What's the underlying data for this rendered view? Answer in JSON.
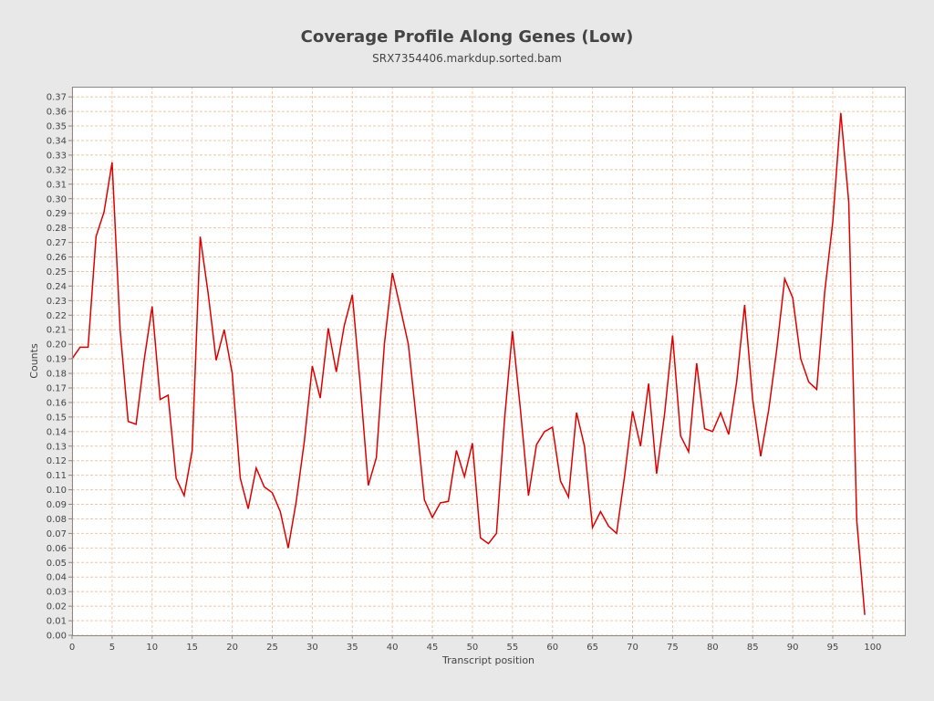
{
  "chart_data": {
    "type": "line",
    "title": "Coverage Profile Along Genes (Low)",
    "subtitle": "SRX7354406.markdup.sorted.bam",
    "xlabel": "Transcript position",
    "ylabel": "Counts",
    "xlim": [
      0,
      104
    ],
    "ylim": [
      0,
      0.377
    ],
    "x_ticks": [
      0,
      5,
      10,
      15,
      20,
      25,
      30,
      35,
      40,
      45,
      50,
      55,
      60,
      65,
      70,
      75,
      80,
      85,
      90,
      95,
      100
    ],
    "y_ticks": [
      "0.00",
      "0.01",
      "0.02",
      "0.03",
      "0.04",
      "0.05",
      "0.06",
      "0.07",
      "0.08",
      "0.09",
      "0.10",
      "0.11",
      "0.12",
      "0.13",
      "0.14",
      "0.15",
      "0.16",
      "0.17",
      "0.18",
      "0.19",
      "0.20",
      "0.21",
      "0.22",
      "0.23",
      "0.24",
      "0.25",
      "0.26",
      "0.27",
      "0.28",
      "0.29",
      "0.30",
      "0.31",
      "0.32",
      "0.33",
      "0.34",
      "0.35",
      "0.36",
      "0.37"
    ],
    "grid": true,
    "colors": {
      "line": "#dd0000",
      "grid": "#f0c8a8",
      "plot_bg": "#ffffff",
      "page_bg": "#e8e8e8"
    },
    "series": [
      {
        "x": [
          0,
          1,
          2,
          3,
          4,
          5,
          6,
          7,
          8,
          9,
          10,
          11,
          12,
          13,
          14,
          15,
          16,
          17,
          18,
          19,
          20,
          21,
          22,
          23,
          24,
          25,
          26,
          27,
          28,
          29,
          30,
          31,
          32,
          33,
          34,
          35,
          36,
          37,
          38,
          39,
          40,
          41,
          42,
          43,
          44,
          45,
          46,
          47,
          48,
          49,
          50,
          51,
          52,
          53,
          54,
          55,
          56,
          57,
          58,
          59,
          60,
          61,
          62,
          63,
          64,
          65,
          66,
          67,
          68,
          69,
          70,
          71,
          72,
          73,
          74,
          75,
          76,
          77,
          78,
          79,
          80,
          81,
          82,
          83,
          84,
          85,
          86,
          87,
          88,
          89,
          90,
          91,
          92,
          93,
          94,
          95,
          96,
          97,
          98,
          99
        ],
        "values": [
          0.19,
          0.198,
          0.198,
          0.274,
          0.291,
          0.325,
          0.21,
          0.147,
          0.145,
          0.189,
          0.226,
          0.162,
          0.165,
          0.108,
          0.096,
          0.127,
          0.274,
          0.235,
          0.189,
          0.21,
          0.18,
          0.108,
          0.087,
          0.115,
          0.102,
          0.098,
          0.085,
          0.06,
          0.092,
          0.133,
          0.185,
          0.163,
          0.211,
          0.181,
          0.213,
          0.234,
          0.172,
          0.103,
          0.122,
          0.2,
          0.249,
          0.225,
          0.2,
          0.148,
          0.093,
          0.081,
          0.091,
          0.092,
          0.127,
          0.109,
          0.132,
          0.067,
          0.063,
          0.07,
          0.148,
          0.209,
          0.155,
          0.096,
          0.131,
          0.14,
          0.143,
          0.106,
          0.095,
          0.153,
          0.13,
          0.074,
          0.085,
          0.075,
          0.07,
          0.109,
          0.154,
          0.13,
          0.173,
          0.111,
          0.152,
          0.206,
          0.137,
          0.126,
          0.187,
          0.142,
          0.14,
          0.153,
          0.138,
          0.174,
          0.227,
          0.162,
          0.123,
          0.155,
          0.196,
          0.245,
          0.232,
          0.19,
          0.174,
          0.169,
          0.236,
          0.284,
          0.359,
          0.298,
          0.079,
          0.014
        ]
      }
    ]
  }
}
